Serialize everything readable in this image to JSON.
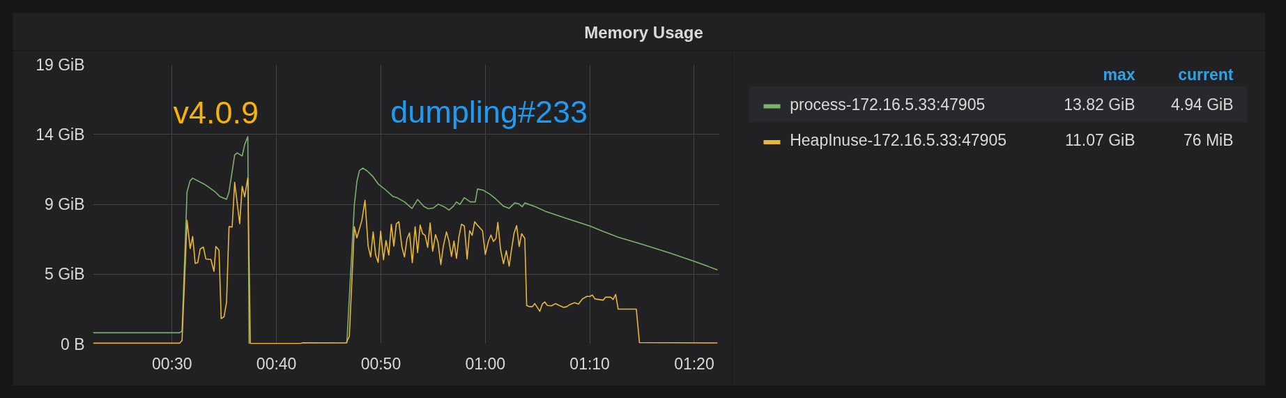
{
  "chart_data": {
    "type": "line",
    "title": "Memory Usage",
    "xlim": [
      0.374,
      1.374
    ],
    "xticks": [
      {
        "value": 0.5,
        "label": "00:30"
      },
      {
        "value": 0.6667,
        "label": "00:40"
      },
      {
        "value": 0.8333,
        "label": "00:50"
      },
      {
        "value": 1.0,
        "label": "01:00"
      },
      {
        "value": 1.1667,
        "label": "01:10"
      },
      {
        "value": 1.3333,
        "label": "01:20"
      }
    ],
    "ylim": [
      0,
      18.626
    ],
    "yticks": [
      {
        "value": 0,
        "label": "0 B"
      },
      {
        "value": 4.657,
        "label": "5 GiB"
      },
      {
        "value": 9.313,
        "label": "9 GiB"
      },
      {
        "value": 13.97,
        "label": "14 GiB"
      },
      {
        "value": 18.626,
        "label": "19 GiB"
      }
    ],
    "grid": true,
    "legend": "right",
    "annotations": [
      "v4.0.9",
      "dumpling#233",
      "max",
      "current",
      "13.82 GiB",
      "4.94 GiB",
      "11.07 GiB",
      "76 MiB"
    ],
    "series": [
      {
        "name": "process-172.16.5.33:47905",
        "color": "#7eb26d",
        "x": [
          0.374,
          0.512,
          0.516,
          0.524,
          0.529,
          0.533,
          0.552,
          0.568,
          0.576,
          0.587,
          0.591,
          0.6,
          0.604,
          0.612,
          0.616,
          0.621,
          0.623,
          0.7,
          0.779,
          0.791,
          0.795,
          0.799,
          0.8045,
          0.8115,
          0.82,
          0.829,
          0.84,
          0.853,
          0.859,
          0.871,
          0.883,
          0.892,
          0.902,
          0.909,
          0.917,
          0.925,
          0.936,
          0.942,
          0.949,
          0.954,
          0.9595,
          0.9665,
          0.976,
          0.984,
          0.9875,
          0.9965,
          1.007,
          1.017,
          1.029,
          1.038,
          1.047,
          1.053,
          1.059,
          1.063,
          1.081,
          1.097,
          1.13,
          1.167,
          1.188,
          1.212,
          1.253,
          1.2945,
          1.336,
          1.3705
        ],
        "values": [
          0.75,
          0.75,
          0.86,
          10.14,
          10.89,
          11.05,
          10.64,
          10.17,
          9.84,
          9.64,
          10.14,
          12.59,
          12.73,
          12.53,
          13.29,
          13.82,
          0.0,
          null,
          0.05,
          9.27,
          10.81,
          11.55,
          11.72,
          11.53,
          11.19,
          10.67,
          10.3,
          9.82,
          9.75,
          9.47,
          9.03,
          9.63,
          9.16,
          9.01,
          9.06,
          9.32,
          9.1,
          8.92,
          9.18,
          9.47,
          9.3,
          9.75,
          9.47,
          9.47,
          10.33,
          10.25,
          9.99,
          9.65,
          9.18,
          9.04,
          9.4,
          9.35,
          9.15,
          9.4,
          9.13,
          8.82,
          8.36,
          7.86,
          7.5,
          7.12,
          6.61,
          6.06,
          5.47,
          4.94
        ]
      },
      {
        "name": "HeapInuse-172.16.5.33:47905",
        "color": "#eab839",
        "x": [
          0.374,
          0.512,
          0.516,
          0.524,
          0.529,
          0.533,
          0.537,
          0.541,
          0.545,
          0.55,
          0.554,
          0.562,
          0.567,
          0.57,
          0.575,
          0.5785,
          0.583,
          0.587,
          0.591,
          0.596,
          0.6,
          0.608,
          0.612,
          0.616,
          0.621,
          0.625,
          0.705,
          0.709,
          0.778,
          0.783,
          0.791,
          0.795,
          0.803,
          0.808,
          0.813,
          0.817,
          0.821,
          0.825,
          0.829,
          0.833,
          0.8375,
          0.8415,
          0.846,
          0.85,
          0.854,
          0.858,
          0.862,
          0.867,
          0.871,
          0.875,
          0.879,
          0.8835,
          0.888,
          0.892,
          0.896,
          0.9,
          0.904,
          0.908,
          0.912,
          0.916,
          0.9205,
          0.9245,
          0.929,
          0.933,
          0.938,
          0.942,
          0.946,
          0.95,
          0.954,
          0.958,
          0.962,
          0.9665,
          0.971,
          0.975,
          0.979,
          0.983,
          0.988,
          0.9955,
          1.0,
          1.005,
          1.009,
          1.013,
          1.017,
          1.02,
          1.0245,
          1.029,
          1.0335,
          1.038,
          1.042,
          1.046,
          1.05,
          1.054,
          1.058,
          1.063,
          1.066,
          1.0705,
          1.075,
          1.079,
          1.087,
          1.091,
          1.095,
          1.099,
          1.1055,
          1.112,
          1.118,
          1.125,
          1.13,
          1.135,
          1.1425,
          1.1485,
          1.155,
          1.162,
          1.167,
          1.171,
          1.175,
          1.188,
          1.192,
          1.2,
          1.204,
          1.208,
          1.212,
          1.241,
          1.246,
          1.3705
        ],
        "values": [
          0.05,
          0.05,
          0.23,
          8.24,
          6.36,
          7.16,
          5.37,
          5.42,
          6.33,
          6.46,
          5.67,
          5.63,
          4.84,
          6.5,
          6.25,
          1.69,
          1.81,
          2.77,
          7.82,
          7.79,
          10.77,
          8.02,
          10.51,
          9.81,
          11.07,
          0.03,
          0.03,
          0.08,
          0.07,
          0.51,
          7.81,
          7.07,
          8.24,
          9.58,
          6.52,
          5.8,
          7.47,
          5.92,
          5.44,
          7.52,
          5.61,
          6.9,
          5.92,
          7.98,
          6.52,
          8.01,
          8.15,
          6.44,
          5.8,
          7.0,
          7.41,
          5.41,
          7.81,
          6.09,
          7.93,
          7.35,
          7.24,
          6.44,
          8.07,
          6.18,
          7.29,
          6.78,
          5.29,
          6.52,
          7.47,
          6.86,
          5.83,
          6.86,
          5.7,
          7.17,
          7.98,
          7.86,
          5.66,
          7.55,
          7.24,
          8.15,
          7.89,
          7.55,
          5.97,
          6.86,
          7.26,
          6.83,
          7.04,
          8.1,
          6.26,
          5.35,
          6.21,
          5.18,
          6.35,
          7.41,
          7.89,
          6.49,
          7.35,
          7.04,
          2.57,
          2.49,
          2.49,
          2.69,
          2.18,
          2.66,
          2.8,
          2.57,
          2.54,
          2.69,
          2.57,
          2.44,
          2.49,
          2.63,
          2.75,
          2.66,
          3.0,
          3.17,
          3.17,
          3.26,
          3.0,
          2.92,
          3.12,
          3.12,
          2.97,
          3.3,
          2.32,
          2.32,
          0.09,
          0.07
        ]
      }
    ]
  }
}
